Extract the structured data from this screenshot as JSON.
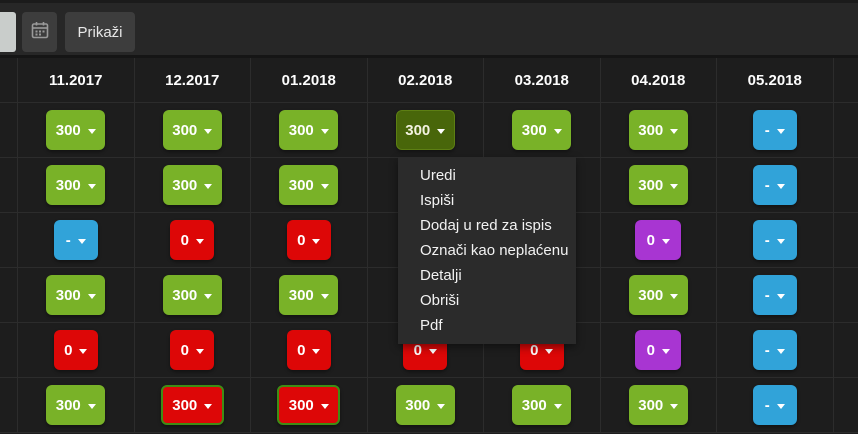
{
  "toolbar": {
    "show_button_label": "Prikaži",
    "date_input_value": ""
  },
  "table": {
    "months": [
      "11.2017",
      "12.2017",
      "01.2018",
      "02.2018",
      "03.2018",
      "04.2018",
      "05.2018"
    ],
    "rows": [
      {
        "cells": [
          {
            "value": "300",
            "state": "green"
          },
          {
            "value": "300",
            "state": "green"
          },
          {
            "value": "300",
            "state": "green"
          },
          {
            "value": "300",
            "state": "green-open"
          },
          {
            "value": "300",
            "state": "green"
          },
          {
            "value": "300",
            "state": "green"
          },
          {
            "value": "-",
            "state": "blue"
          }
        ]
      },
      {
        "cells": [
          {
            "value": "300",
            "state": "green"
          },
          {
            "value": "300",
            "state": "green"
          },
          {
            "value": "300",
            "state": "green"
          },
          null,
          null,
          {
            "value": "300",
            "state": "green"
          },
          {
            "value": "-",
            "state": "blue"
          }
        ]
      },
      {
        "cells": [
          {
            "value": "-",
            "state": "blue"
          },
          {
            "value": "0",
            "state": "red"
          },
          {
            "value": "0",
            "state": "red"
          },
          null,
          null,
          {
            "value": "0",
            "state": "purple"
          },
          {
            "value": "-",
            "state": "blue"
          }
        ]
      },
      {
        "cells": [
          {
            "value": "300",
            "state": "green"
          },
          {
            "value": "300",
            "state": "green"
          },
          {
            "value": "300",
            "state": "green"
          },
          null,
          null,
          {
            "value": "300",
            "state": "green"
          },
          {
            "value": "-",
            "state": "blue"
          }
        ]
      },
      {
        "cells": [
          {
            "value": "0",
            "state": "red"
          },
          {
            "value": "0",
            "state": "red"
          },
          {
            "value": "0",
            "state": "red"
          },
          {
            "value": "0",
            "state": "red"
          },
          {
            "value": "0",
            "state": "red"
          },
          {
            "value": "0",
            "state": "purple"
          },
          {
            "value": "-",
            "state": "blue"
          }
        ]
      },
      {
        "cells": [
          {
            "value": "300",
            "state": "green"
          },
          {
            "value": "300",
            "state": "red-green-border"
          },
          {
            "value": "300",
            "state": "red-green-border"
          },
          {
            "value": "300",
            "state": "green"
          },
          {
            "value": "300",
            "state": "green"
          },
          {
            "value": "300",
            "state": "green"
          },
          {
            "value": "-",
            "state": "blue"
          }
        ]
      }
    ]
  },
  "context_menu": {
    "items": [
      "Uredi",
      "Ispiši",
      "Dodaj u red za ispis",
      "Označi kao neplaćenu",
      "Detalji",
      "Obriši",
      "Pdf"
    ]
  },
  "colors": {
    "green": "#79b228",
    "green_open": "#48660a",
    "green_open_border": "#5d7f13",
    "red": "#dd0707",
    "blue": "#31a3d9",
    "purple": "#a835d2",
    "paid_partial_border": "#3f8d14",
    "menu_bg": "#2b2b2b"
  }
}
